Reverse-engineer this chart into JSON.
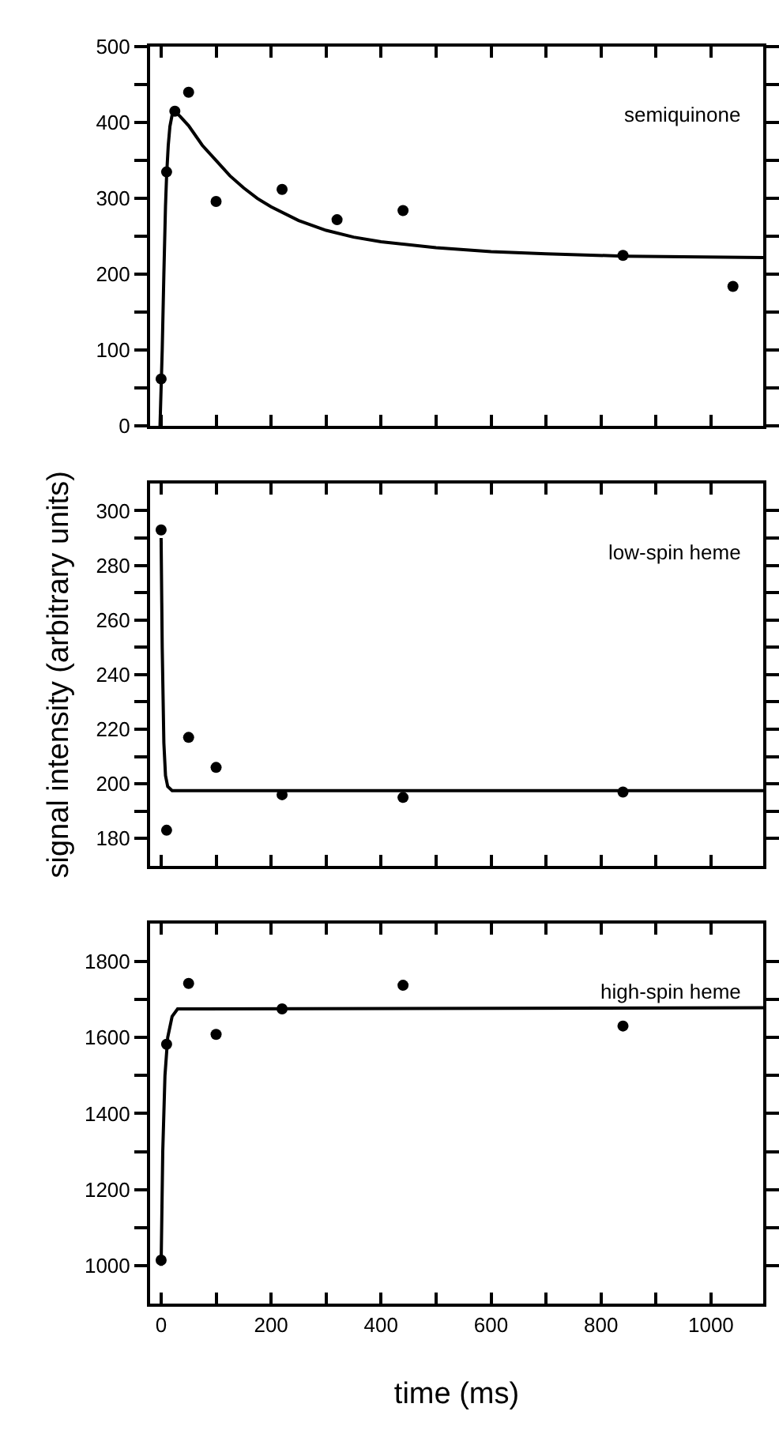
{
  "chart_data": [
    {
      "type": "scatter",
      "annotations": [
        "semiquinone"
      ],
      "tick_labels": "y",
      "xlim": [
        -20,
        1095
      ],
      "xticks": [
        0,
        {
          "value": 100,
          "label": null
        },
        200,
        {
          "value": 300,
          "label": null
        },
        400,
        {
          "value": 500,
          "label": null
        },
        600,
        {
          "value": 700,
          "label": null
        },
        800,
        {
          "value": 900,
          "label": null
        },
        1000
      ],
      "ylim": [
        0,
        500
      ],
      "yticks": [
        0,
        {
          "value": 50,
          "label": null
        },
        100,
        {
          "value": 150,
          "label": null
        },
        200,
        {
          "value": 250,
          "label": null
        },
        300,
        {
          "value": 350,
          "label": null
        },
        400,
        {
          "value": 450,
          "label": null
        },
        500
      ],
      "series": [
        {
          "marker": "circle",
          "color": "#000000",
          "x": [
            0,
            10,
            25,
            50,
            100,
            220,
            320,
            440,
            840,
            1040
          ],
          "values": [
            62,
            335,
            415,
            440,
            296,
            312,
            272,
            284,
            225,
            184
          ]
        },
        {
          "type": "line",
          "marker": "none",
          "line_style": "solid",
          "color": "#000000",
          "x": [
            -2,
            2,
            5,
            8,
            10,
            13,
            16,
            20,
            25,
            35,
            50,
            75,
            100,
            125,
            150,
            175,
            200,
            250,
            300,
            350,
            400,
            500,
            600,
            700,
            840,
            1095
          ],
          "values": [
            0,
            100,
            200,
            290,
            330,
            370,
            395,
            410,
            415,
            408,
            396,
            370,
            350,
            330,
            314,
            300,
            289,
            271,
            258,
            249,
            243,
            235,
            230,
            227,
            224,
            222
          ]
        }
      ]
    },
    {
      "type": "scatter",
      "annotations": [
        "low-spin heme"
      ],
      "tick_labels": "y",
      "ylabel": "signal intensity (arbitrary units)",
      "xlim": [
        -20,
        1095
      ],
      "xticks": [
        0,
        {
          "value": 100,
          "label": null
        },
        200,
        {
          "value": 300,
          "label": null
        },
        400,
        {
          "value": 500,
          "label": null
        },
        600,
        {
          "value": 700,
          "label": null
        },
        800,
        {
          "value": 900,
          "label": null
        },
        1000
      ],
      "ylim": [
        170,
        310
      ],
      "yticks": [
        180,
        {
          "value": 190,
          "label": null
        },
        200,
        {
          "value": 210,
          "label": null
        },
        220,
        {
          "value": 230,
          "label": null
        },
        240,
        {
          "value": 250,
          "label": null
        },
        260,
        {
          "value": 270,
          "label": null
        },
        280,
        {
          "value": 290,
          "label": null
        },
        300
      ],
      "series": [
        {
          "marker": "circle",
          "color": "#000000",
          "x": [
            0,
            10,
            50,
            100,
            220,
            440,
            840
          ],
          "values": [
            293,
            183,
            217,
            206,
            196,
            195,
            197
          ]
        },
        {
          "type": "line",
          "marker": "none",
          "line_style": "solid",
          "color": "#000000",
          "x": [
            0,
            2,
            5,
            8,
            12,
            20,
            1095
          ],
          "values": [
            290,
            250,
            215,
            203,
            199,
            197.5,
            197.5
          ]
        }
      ]
    },
    {
      "type": "scatter",
      "annotations": [
        "high-spin heme"
      ],
      "xlabel": "time (ms)",
      "xlim": [
        -20,
        1095
      ],
      "xticks": [
        0,
        {
          "value": 100,
          "label": null
        },
        200,
        {
          "value": 300,
          "label": null
        },
        400,
        {
          "value": 500,
          "label": null
        },
        600,
        {
          "value": 700,
          "label": null
        },
        800,
        {
          "value": 900,
          "label": null
        },
        1000
      ],
      "ylim": [
        900,
        1900
      ],
      "yticks": [
        1000,
        {
          "value": 1100,
          "label": null
        },
        1200,
        {
          "value": 1300,
          "label": null
        },
        1400,
        {
          "value": 1500,
          "label": null
        },
        1600,
        {
          "value": 1700,
          "label": null
        },
        1800
      ],
      "series": [
        {
          "marker": "circle",
          "color": "#000000",
          "x": [
            0,
            10,
            50,
            100,
            220,
            440,
            840
          ],
          "values": [
            1015,
            1582,
            1742,
            1608,
            1675,
            1737,
            1630
          ]
        },
        {
          "type": "line",
          "marker": "none",
          "line_style": "solid",
          "color": "#000000",
          "x": [
            0,
            3,
            7,
            12,
            20,
            30,
            1095
          ],
          "values": [
            1000,
            1300,
            1500,
            1600,
            1655,
            1675,
            1678
          ]
        }
      ]
    }
  ]
}
